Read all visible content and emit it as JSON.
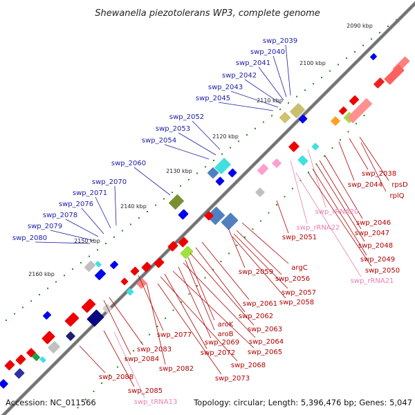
{
  "title": "Shewanella piezotolerans WP3, complete genome",
  "footer": {
    "accession": "Accession: NC_011566",
    "summary": "Topology: circular; Length: 5,396,476 bp; Genes: 5,047"
  },
  "kbp_ticks": [
    "2090 kbp",
    "2100 kbp",
    "2110 kbp",
    "2120 kbp",
    "2130 kbp",
    "2140 kbp",
    "2150 kbp",
    "2160 kbp"
  ],
  "outer_labels": [
    "swp_2039",
    "swp_2040",
    "swp_2041",
    "swp_2042",
    "swp_2043",
    "swp_2045",
    "swp_2052",
    "swp_2053",
    "swp_2054",
    "swp_2060",
    "swp_2070",
    "swp_2071",
    "swp_2076",
    "swp_2078",
    "swp_2079",
    "swp_2080"
  ],
  "inner_labels": [
    "swp_2038",
    "rpsD",
    "swp_2044",
    "rplQ",
    "swp_rRNA20",
    "swp_2046",
    "swp_rRNA22",
    "swp_2047",
    "swp_2051",
    "swp_2048",
    "swp_2049",
    "swp_2050",
    "swp_rRNA21",
    "argC",
    "swp_2059",
    "swp_2056",
    "swp_2057",
    "swp_2058",
    "swp_2061",
    "swp_2062",
    "swp_2063",
    "aroK",
    "aroB",
    "swp_2077",
    "swp_2064",
    "swp_2069",
    "swp_2065",
    "swp_2072",
    "swp_2068",
    "swp_2083",
    "swp_2084",
    "swp_2082",
    "swp_2073",
    "swp_2088",
    "swp_2085",
    "swp_tRNA13"
  ],
  "colors": {
    "backbone": "#7a7a7a",
    "forward_gene": "#0000ee",
    "reverse_gene": "#ee0000",
    "rRNA": "#ff9ed0",
    "tRNA": "#40e0e0",
    "tick": "#1e8a1e",
    "label_forward": "#1a1aa8",
    "label_reverse": "#b00000",
    "label_rna": "#e880b0"
  }
}
